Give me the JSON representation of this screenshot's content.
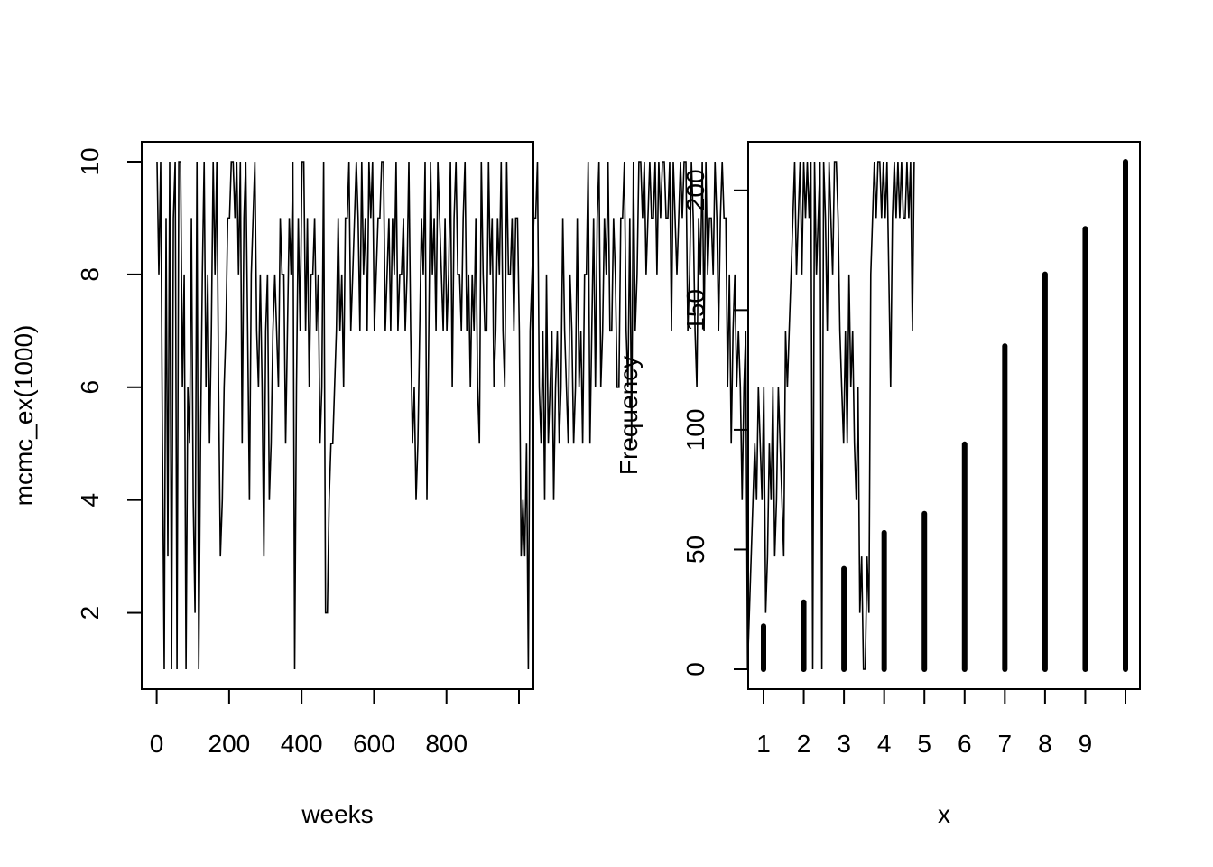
{
  "chart_data": [
    {
      "type": "line",
      "xlabel": "weeks",
      "ylabel": "mcmc_ex(1000)",
      "xlim": [
        1,
        1000
      ],
      "ylim": [
        1,
        10
      ],
      "x_ticks": [
        0,
        200,
        400,
        600,
        800
      ],
      "x_tick_labels": [
        "0",
        "200",
        "400",
        "600",
        "800"
      ],
      "y_ticks": [
        2,
        4,
        6,
        8,
        10
      ],
      "y_tick_labels": [
        "2",
        "4",
        "6",
        "8",
        "10"
      ],
      "grid": false,
      "series": [
        {
          "x_start": 1,
          "x_step": 5,
          "values": [
            10,
            8,
            10,
            5,
            1,
            9,
            3,
            10,
            1,
            9,
            10,
            1,
            10,
            10,
            6,
            8,
            1,
            6,
            5,
            9,
            4,
            2,
            10,
            1,
            5,
            8,
            10,
            6,
            8,
            5,
            7,
            10,
            8,
            10,
            6,
            3,
            4,
            6,
            7,
            9,
            9,
            10,
            10,
            9,
            10,
            8,
            10,
            5,
            9,
            10,
            7,
            4,
            8,
            9,
            10,
            7,
            6,
            8,
            6,
            3,
            7,
            8,
            4,
            5,
            7,
            8,
            7,
            6,
            9,
            8,
            8,
            5,
            7,
            9,
            8,
            10,
            1,
            6,
            9,
            7,
            10,
            10,
            7,
            9,
            6,
            8,
            8,
            9,
            7,
            8,
            5,
            6,
            10,
            2,
            2,
            4,
            5,
            5,
            6,
            7,
            9,
            7,
            8,
            6,
            9,
            9,
            10,
            7,
            8,
            9,
            10,
            9,
            7,
            10,
            8,
            9,
            7,
            10,
            9,
            10,
            7,
            8,
            9,
            9,
            10,
            10,
            7,
            8,
            9,
            7,
            9,
            8,
            10,
            7,
            8,
            8,
            9,
            7,
            8,
            10,
            7,
            5,
            6,
            4,
            5,
            7,
            9,
            8,
            10,
            4,
            7,
            10,
            8,
            9,
            7,
            10,
            9,
            8,
            7,
            9,
            7,
            8,
            10,
            6,
            9,
            10,
            8,
            8,
            7,
            9,
            10,
            7,
            8,
            6,
            8,
            7,
            9,
            6,
            5,
            10,
            8,
            7,
            7,
            10,
            8,
            9,
            6,
            7,
            9,
            8,
            10,
            7,
            6,
            10,
            8,
            8,
            9,
            7,
            9,
            9,
            7,
            3,
            4,
            3,
            5,
            1,
            7,
            8,
            9,
            9,
            10,
            6,
            5,
            7,
            4,
            8,
            5,
            6,
            7,
            4,
            6,
            7,
            5,
            6,
            9,
            7,
            6,
            5,
            8,
            7,
            5,
            6,
            9,
            6,
            7,
            5,
            8,
            8,
            10,
            5,
            7,
            9,
            6,
            9,
            10,
            6,
            7,
            9,
            8,
            10,
            7,
            7,
            9,
            8,
            6,
            6,
            9,
            9,
            10,
            7,
            6,
            9,
            5,
            10,
            7,
            8,
            10,
            10,
            9,
            10,
            8,
            9,
            10,
            9,
            9,
            10,
            8,
            10,
            9,
            10,
            10,
            9,
            9,
            10,
            7,
            10,
            9,
            8,
            9,
            10,
            9,
            10,
            10,
            7,
            8,
            10,
            9,
            7,
            6,
            9,
            8,
            10,
            7,
            10,
            8,
            9,
            9,
            8,
            10,
            9,
            7,
            9,
            10,
            9,
            9,
            6,
            8,
            5,
            7,
            8,
            6,
            7,
            6,
            4,
            6,
            7,
            1,
            2,
            3,
            4,
            5,
            4,
            6,
            5,
            4,
            6,
            2,
            3,
            5,
            4,
            6,
            3,
            4,
            6,
            5,
            4,
            3,
            7,
            6,
            7,
            8,
            9,
            10,
            8,
            9,
            10,
            8,
            10,
            9,
            10,
            9,
            10,
            1,
            10,
            8,
            9,
            10,
            1,
            10,
            9,
            7,
            10,
            9,
            8,
            10,
            10,
            9,
            7,
            6,
            5,
            7,
            5,
            8,
            6,
            7,
            5,
            4,
            6,
            2,
            3,
            1,
            1,
            3,
            2,
            8,
            9,
            10,
            9,
            10,
            10,
            9,
            10,
            9,
            10,
            8,
            6,
            9,
            10,
            9,
            10,
            9,
            10,
            9,
            9,
            10,
            9,
            10,
            7,
            10
          ]
        }
      ]
    },
    {
      "type": "bar",
      "xlabel": "x",
      "ylabel": "Frequency",
      "categories": [
        1,
        2,
        3,
        4,
        5,
        6,
        7,
        8,
        9,
        10
      ],
      "values": [
        18,
        28,
        42,
        57,
        65,
        94,
        135,
        165,
        184,
        212
      ],
      "xlim": [
        1,
        10
      ],
      "ylim": [
        0,
        212
      ],
      "x_ticks": [
        1,
        2,
        3,
        4,
        5,
        6,
        7,
        8,
        9,
        10
      ],
      "x_tick_labels": [
        "1",
        "2",
        "3",
        "4",
        "5",
        "6",
        "7",
        "8",
        "9",
        ""
      ],
      "y_ticks": [
        0,
        50,
        100,
        150,
        200
      ],
      "y_tick_labels": [
        "0",
        "50",
        "100",
        "150",
        "200"
      ],
      "grid": false
    }
  ]
}
